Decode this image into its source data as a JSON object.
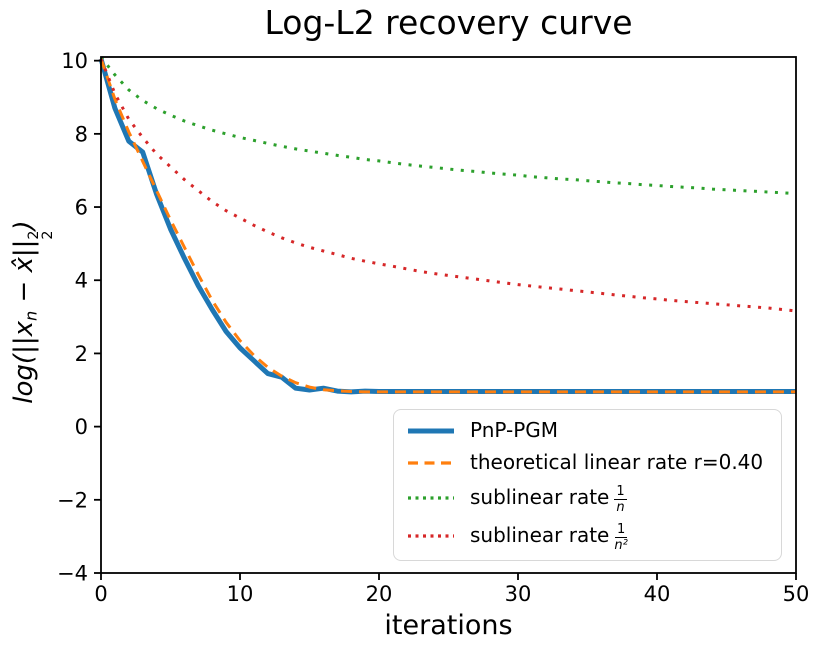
{
  "title": "Log-L2 recovery curve",
  "axes": {
    "xlabel": "iterations",
    "ylabel": {
      "prefix": "log(||x",
      "sub_n": "n",
      "mid": " − x̂||",
      "sup": "2",
      "sub": "2",
      "suffix": ")"
    },
    "x_ticks": [
      0,
      10,
      20,
      30,
      40,
      50
    ],
    "y_ticks": [
      -4,
      -2,
      0,
      2,
      4,
      6,
      8,
      10
    ]
  },
  "legend": {
    "items": [
      {
        "series": 0,
        "label": "PnP-PGM"
      },
      {
        "series": 1,
        "label": "theoretical linear rate r=0.40"
      },
      {
        "series": 2,
        "label_prefix": "sublinear rate",
        "frac": {
          "num": "1",
          "den": "n"
        }
      },
      {
        "series": 3,
        "label_prefix": "sublinear rate",
        "frac": {
          "num": "1",
          "den": "n²"
        }
      }
    ]
  },
  "chart_data": {
    "type": "line",
    "title": "Log-L2 recovery curve",
    "xlabel": "iterations",
    "ylabel": "log(||x_n − x̂||_2^2)",
    "xlim": [
      0,
      50
    ],
    "ylim": [
      -4,
      10.1
    ],
    "grid": false,
    "legend_position": "lower right inside",
    "x": [
      0,
      1,
      2,
      3,
      4,
      5,
      6,
      7,
      8,
      9,
      10,
      11,
      12,
      13,
      14,
      15,
      16,
      17,
      18,
      19,
      20,
      21,
      22,
      23,
      24,
      25,
      26,
      27,
      28,
      29,
      30,
      31,
      32,
      33,
      34,
      35,
      36,
      37,
      38,
      39,
      40,
      41,
      42,
      43,
      44,
      45,
      46,
      47,
      48,
      49,
      50
    ],
    "series": [
      {
        "name": "PnP-PGM",
        "color": "#1f77b4",
        "style": "solid",
        "values": [
          10.05,
          8.7,
          7.8,
          7.5,
          6.35,
          5.4,
          4.6,
          3.85,
          3.2,
          2.6,
          2.15,
          1.8,
          1.45,
          1.35,
          1.05,
          1.0,
          1.05,
          0.97,
          0.95,
          0.97,
          0.96,
          0.96,
          0.96,
          0.96,
          0.96,
          0.96,
          0.96,
          0.96,
          0.96,
          0.96,
          0.96,
          0.96,
          0.96,
          0.96,
          0.96,
          0.96,
          0.96,
          0.96,
          0.96,
          0.96,
          0.96,
          0.96,
          0.96,
          0.96,
          0.96,
          0.96,
          0.96,
          0.96,
          0.96,
          0.96,
          0.96
        ]
      },
      {
        "name": "theoretical linear rate r=0.40",
        "color": "#ff7f0e",
        "style": "dashed",
        "values": [
          10.05,
          8.95,
          8.05,
          7.25,
          6.45,
          5.65,
          4.9,
          4.15,
          3.45,
          2.85,
          2.35,
          1.95,
          1.62,
          1.38,
          1.2,
          1.08,
          1.01,
          0.98,
          0.96,
          0.95,
          0.95,
          0.95,
          0.95,
          0.95,
          0.95,
          0.95,
          0.95,
          0.95,
          0.95,
          0.95,
          0.95,
          0.95,
          0.95,
          0.95,
          0.95,
          0.95,
          0.95,
          0.95,
          0.95,
          0.95,
          0.95,
          0.95,
          0.95,
          0.95,
          0.95,
          0.95,
          0.95,
          0.95,
          0.95,
          0.95,
          0.95
        ]
      },
      {
        "name": "sublinear rate 1/n",
        "color": "#2ca02c",
        "style": "dotted",
        "values": [
          10.1,
          9.61,
          9.2,
          8.91,
          8.69,
          8.51,
          8.35,
          8.22,
          8.1,
          8.0,
          7.9,
          7.82,
          7.74,
          7.66,
          7.59,
          7.53,
          7.47,
          7.41,
          7.36,
          7.3,
          7.26,
          7.21,
          7.16,
          7.12,
          7.08,
          7.04,
          7.0,
          6.97,
          6.93,
          6.9,
          6.87,
          6.83,
          6.8,
          6.77,
          6.75,
          6.72,
          6.69,
          6.66,
          6.64,
          6.61,
          6.59,
          6.56,
          6.54,
          6.52,
          6.49,
          6.47,
          6.45,
          6.43,
          6.41,
          6.39,
          6.37
        ]
      },
      {
        "name": "sublinear rate 1/n^2",
        "color": "#d62728",
        "style": "dotted",
        "values": [
          10.05,
          9.1,
          8.4,
          7.9,
          7.45,
          7.1,
          6.75,
          6.45,
          6.15,
          5.9,
          5.7,
          5.5,
          5.32,
          5.16,
          5.02,
          4.9,
          4.8,
          4.7,
          4.6,
          4.52,
          4.45,
          4.38,
          4.31,
          4.24,
          4.18,
          4.13,
          4.08,
          4.03,
          3.98,
          3.93,
          3.88,
          3.84,
          3.8,
          3.76,
          3.72,
          3.68,
          3.64,
          3.6,
          3.56,
          3.52,
          3.49,
          3.45,
          3.42,
          3.39,
          3.36,
          3.33,
          3.3,
          3.27,
          3.24,
          3.2,
          3.16
        ]
      }
    ]
  }
}
